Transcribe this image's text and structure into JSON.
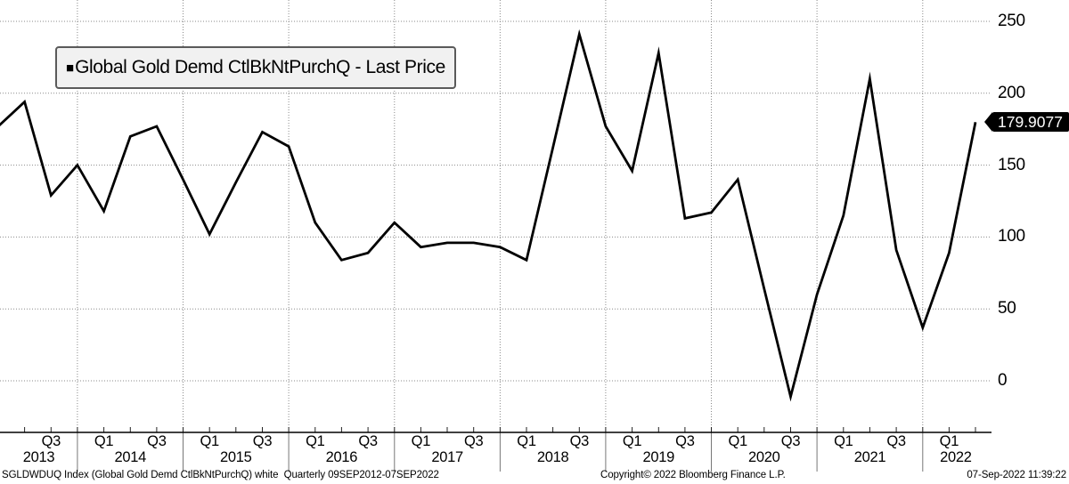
{
  "legend": {
    "bullet": "■",
    "series_label": "Global Gold Demd CtlBkNtPurchQ - Last Price"
  },
  "price_tag": {
    "value": "179.9077"
  },
  "footer": {
    "left": "SGLDWDUQ Index (Global Gold Demd CtlBkNtPurchQ) white  Quarterly 09SEP2012-07SEP2022",
    "center": "Copyright© 2022 Bloomberg Finance L.P.",
    "right": "07-Sep-2022 11:39:22"
  },
  "chart_data": {
    "type": "line",
    "title": "Global Gold Demd CtlBkNtPurchQ - Last Price",
    "x": [
      "Q1 2013",
      "Q2 2013",
      "Q3 2013",
      "Q4 2013",
      "Q1 2014",
      "Q2 2014",
      "Q3 2014",
      "Q4 2014",
      "Q1 2015",
      "Q2 2015",
      "Q3 2015",
      "Q4 2015",
      "Q1 2016",
      "Q2 2016",
      "Q3 2016",
      "Q4 2016",
      "Q1 2017",
      "Q2 2017",
      "Q3 2017",
      "Q4 2017",
      "Q1 2018",
      "Q2 2018",
      "Q3 2018",
      "Q4 2018",
      "Q1 2019",
      "Q2 2019",
      "Q3 2019",
      "Q4 2019",
      "Q1 2020",
      "Q2 2020",
      "Q3 2020",
      "Q4 2020",
      "Q1 2021",
      "Q2 2021",
      "Q3 2021",
      "Q4 2021",
      "Q1 2022",
      "Q2 2022"
    ],
    "series": [
      {
        "name": "Global Gold Demd CtlBkNtPurchQ - Last Price",
        "values": [
          177,
          194,
          129,
          150,
          118,
          170,
          177,
          140,
          102,
          138,
          173,
          163,
          110,
          84,
          89,
          110,
          93,
          96,
          96,
          93,
          84,
          162,
          241,
          177,
          146,
          228,
          113,
          117,
          140,
          64,
          -11,
          60,
          115,
          210,
          91,
          37,
          89,
          179.9077
        ]
      }
    ],
    "last_price": 179.9077,
    "yticks": [
      250,
      200,
      150,
      100,
      50,
      0
    ],
    "ylim": [
      -38,
      268
    ],
    "grid": "dotted-gray",
    "legend_position": "top-left",
    "x_axis_years": [
      {
        "label": "2013",
        "quarters": [
          "Q3"
        ]
      },
      {
        "label": "2014",
        "quarters": [
          "Q1",
          "Q3"
        ]
      },
      {
        "label": "2015",
        "quarters": [
          "Q1",
          "Q3"
        ]
      },
      {
        "label": "2016",
        "quarters": [
          "Q1",
          "Q3"
        ]
      },
      {
        "label": "2017",
        "quarters": [
          "Q1",
          "Q3"
        ]
      },
      {
        "label": "2018",
        "quarters": [
          "Q1",
          "Q3"
        ]
      },
      {
        "label": "2019",
        "quarters": [
          "Q1",
          "Q3"
        ]
      },
      {
        "label": "2020",
        "quarters": [
          "Q1",
          "Q3"
        ]
      },
      {
        "label": "2021",
        "quarters": [
          "Q1",
          "Q3"
        ]
      },
      {
        "label": "2022",
        "quarters": [
          "Q1"
        ]
      }
    ],
    "colors": {
      "line": "#000000",
      "background": "#ffffff",
      "grid": "#8a8a8a",
      "price_tag_bg": "#000000",
      "price_tag_fg": "#ffffff",
      "legend_bg": "#f1f1f1"
    }
  }
}
